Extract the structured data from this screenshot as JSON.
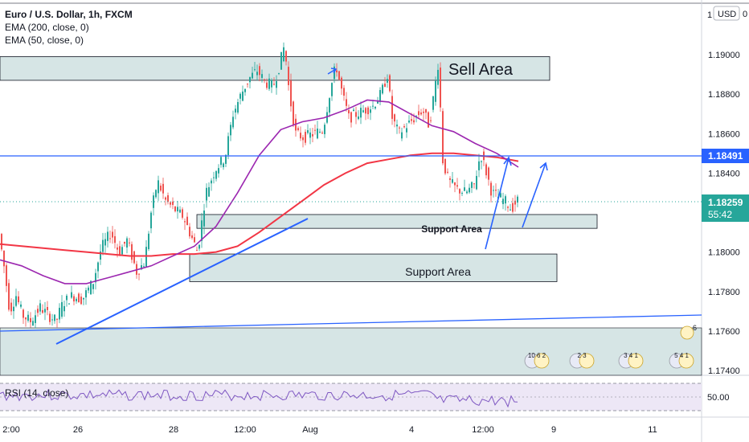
{
  "legend": {
    "symbol": "Euro / U.S. Dollar, 1h, FXCM",
    "ema200": "EMA (200, close, 0)",
    "ema50": "EMA (50, close, 0)"
  },
  "axis": {
    "currency": "USD",
    "currency_suffix": "0"
  },
  "annotations": {
    "sell_area": "Sell Area",
    "support_upper": "Support Area",
    "support_lower": "Support Area"
  },
  "price_tags": {
    "level": "1.18491",
    "last": "1.18259",
    "countdown": "55:42"
  },
  "rsi": {
    "label": "RSI (14, close)",
    "value_label": "50.00"
  },
  "events": [
    {
      "label": "10 6 2"
    },
    {
      "label": "2 3"
    },
    {
      "label": "3 4 1"
    },
    {
      "label": "5 4 1"
    },
    {
      "label": "6"
    }
  ],
  "colors": {
    "up": "#26a69a",
    "down": "#ef5350",
    "ema200": "#f23645",
    "ema50": "#9c27b0",
    "blue_line": "#2962ff",
    "zone_fill": "#c8dcdc",
    "rsi_line": "#7e57c2",
    "rsi_fill": "#ede7f6"
  },
  "chart_data": {
    "type": "candlestick",
    "title": "Euro / U.S. Dollar, 1h, FXCM",
    "x_tick_labels": [
      "2:00",
      "26",
      "28",
      "12:00",
      "Aug",
      "4",
      "12:00",
      "9",
      "11"
    ],
    "y_tick_labels": [
      "1.19200",
      "1.19000",
      "1.18800",
      "1.18600",
      "1.18400",
      "1.18200",
      "1.18000",
      "1.17800",
      "1.17600",
      "1.17400"
    ],
    "ylim": [
      1.1735,
      1.1925
    ],
    "series": [
      {
        "name": "EMA (200, close, 0)",
        "values": [
          1.1804,
          1.1803,
          1.1802,
          1.1801,
          1.18,
          1.1799,
          1.1798,
          1.1798,
          1.1799,
          1.1799,
          1.18,
          1.1803,
          1.181,
          1.1818,
          1.1826,
          1.1834,
          1.184,
          1.1845,
          1.1847,
          1.1849,
          1.185,
          1.185,
          1.1849,
          1.1848,
          1.1846
        ]
      },
      {
        "name": "EMA (50, close, 0)",
        "values": [
          1.1796,
          1.1793,
          1.1788,
          1.1784,
          1.1784,
          1.1787,
          1.179,
          1.1793,
          1.1798,
          1.1803,
          1.1813,
          1.183,
          1.1849,
          1.1862,
          1.1866,
          1.1868,
          1.1872,
          1.1877,
          1.1876,
          1.187,
          1.1864,
          1.1861,
          1.1855,
          1.185,
          1.1843
        ]
      }
    ],
    "zones": [
      {
        "label": "Sell Area",
        "low": 1.1887,
        "high": 1.1899
      },
      {
        "label": "Support Area",
        "low": 1.1812,
        "high": 1.1819
      },
      {
        "label": "Support Area",
        "low": 1.1785,
        "high": 1.1799
      }
    ],
    "horizontal_level": 1.18491,
    "last_price": 1.18259
  }
}
